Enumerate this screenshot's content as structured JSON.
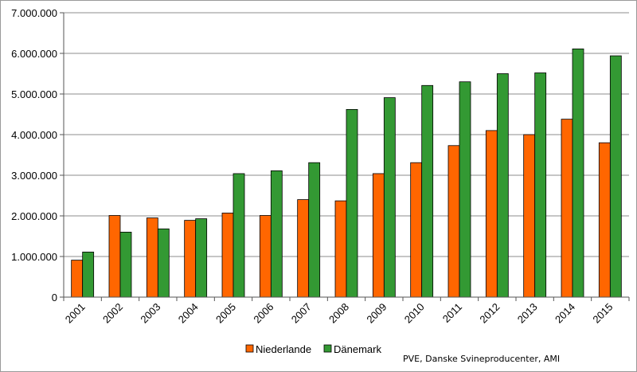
{
  "chart_data": {
    "type": "bar",
    "title": "",
    "xlabel": "",
    "ylabel": "",
    "categories": [
      "2001",
      "2002",
      "2003",
      "2004",
      "2005",
      "2006",
      "2007",
      "2008",
      "2009",
      "2010",
      "2011",
      "2012",
      "2013",
      "2014",
      "2015"
    ],
    "series": [
      {
        "name": "Niederlande",
        "color": "#ff6600",
        "values": [
          910000,
          2010000,
          1950000,
          1890000,
          2070000,
          2010000,
          2400000,
          2370000,
          3040000,
          3310000,
          3730000,
          4100000,
          4000000,
          4380000,
          3800000
        ]
      },
      {
        "name": "Dänemark",
        "color": "#339933",
        "values": [
          1110000,
          1600000,
          1680000,
          1930000,
          3040000,
          3110000,
          3310000,
          4620000,
          4910000,
          5210000,
          5300000,
          5500000,
          5520000,
          6110000,
          5940000
        ]
      }
    ],
    "ylim": [
      0,
      7000000
    ],
    "yticks": [
      0,
      1000000,
      2000000,
      3000000,
      4000000,
      5000000,
      6000000,
      7000000
    ],
    "ytick_labels": [
      "0",
      "1.000.000",
      "2.000.000",
      "3.000.000",
      "4.000.000",
      "5.000.000",
      "6.000.000",
      "7.000.000"
    ],
    "grid": true,
    "legend": "bottom",
    "source_note": "PVE, Danske Svineproducenter, AMI"
  }
}
